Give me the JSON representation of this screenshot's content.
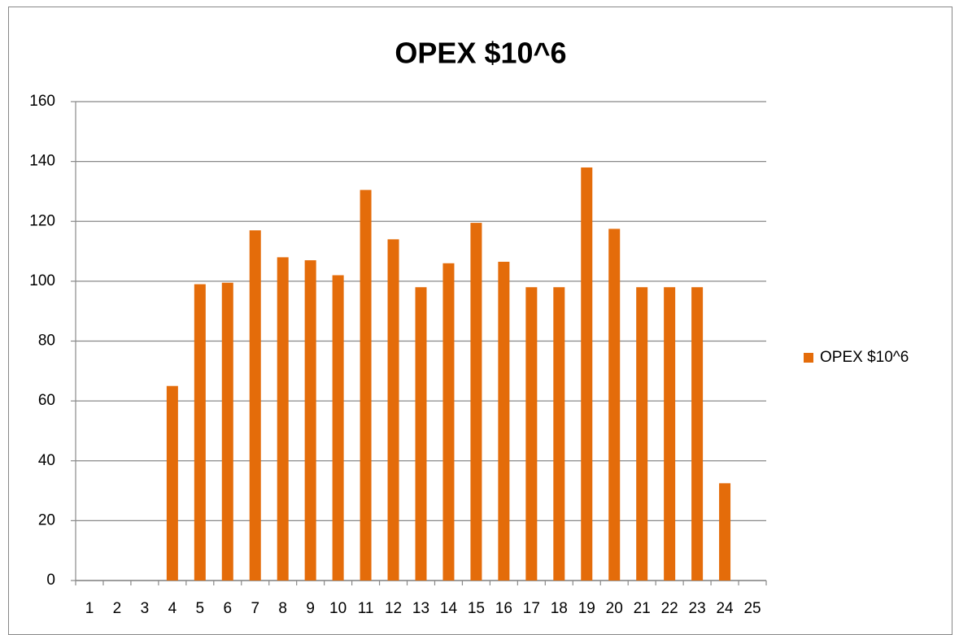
{
  "chart_data": {
    "type": "bar",
    "title": "OPEX $10^6",
    "categories": [
      "1",
      "2",
      "3",
      "4",
      "5",
      "6",
      "7",
      "8",
      "9",
      "10",
      "11",
      "12",
      "13",
      "14",
      "15",
      "16",
      "17",
      "18",
      "19",
      "20",
      "21",
      "22",
      "23",
      "24",
      "25"
    ],
    "series": [
      {
        "name": "OPEX $10^6",
        "color": "#e46c0a",
        "values": [
          null,
          null,
          null,
          65,
          99,
          99.5,
          117,
          108,
          107,
          102,
          130.5,
          114,
          98,
          106,
          119.5,
          106.5,
          98,
          98,
          138,
          117.5,
          98,
          98,
          98,
          32.5,
          null
        ]
      }
    ],
    "ylim": [
      0,
      160
    ],
    "yticks": [
      0,
      20,
      40,
      60,
      80,
      100,
      120,
      140,
      160
    ],
    "grid": true,
    "legend": "right"
  }
}
